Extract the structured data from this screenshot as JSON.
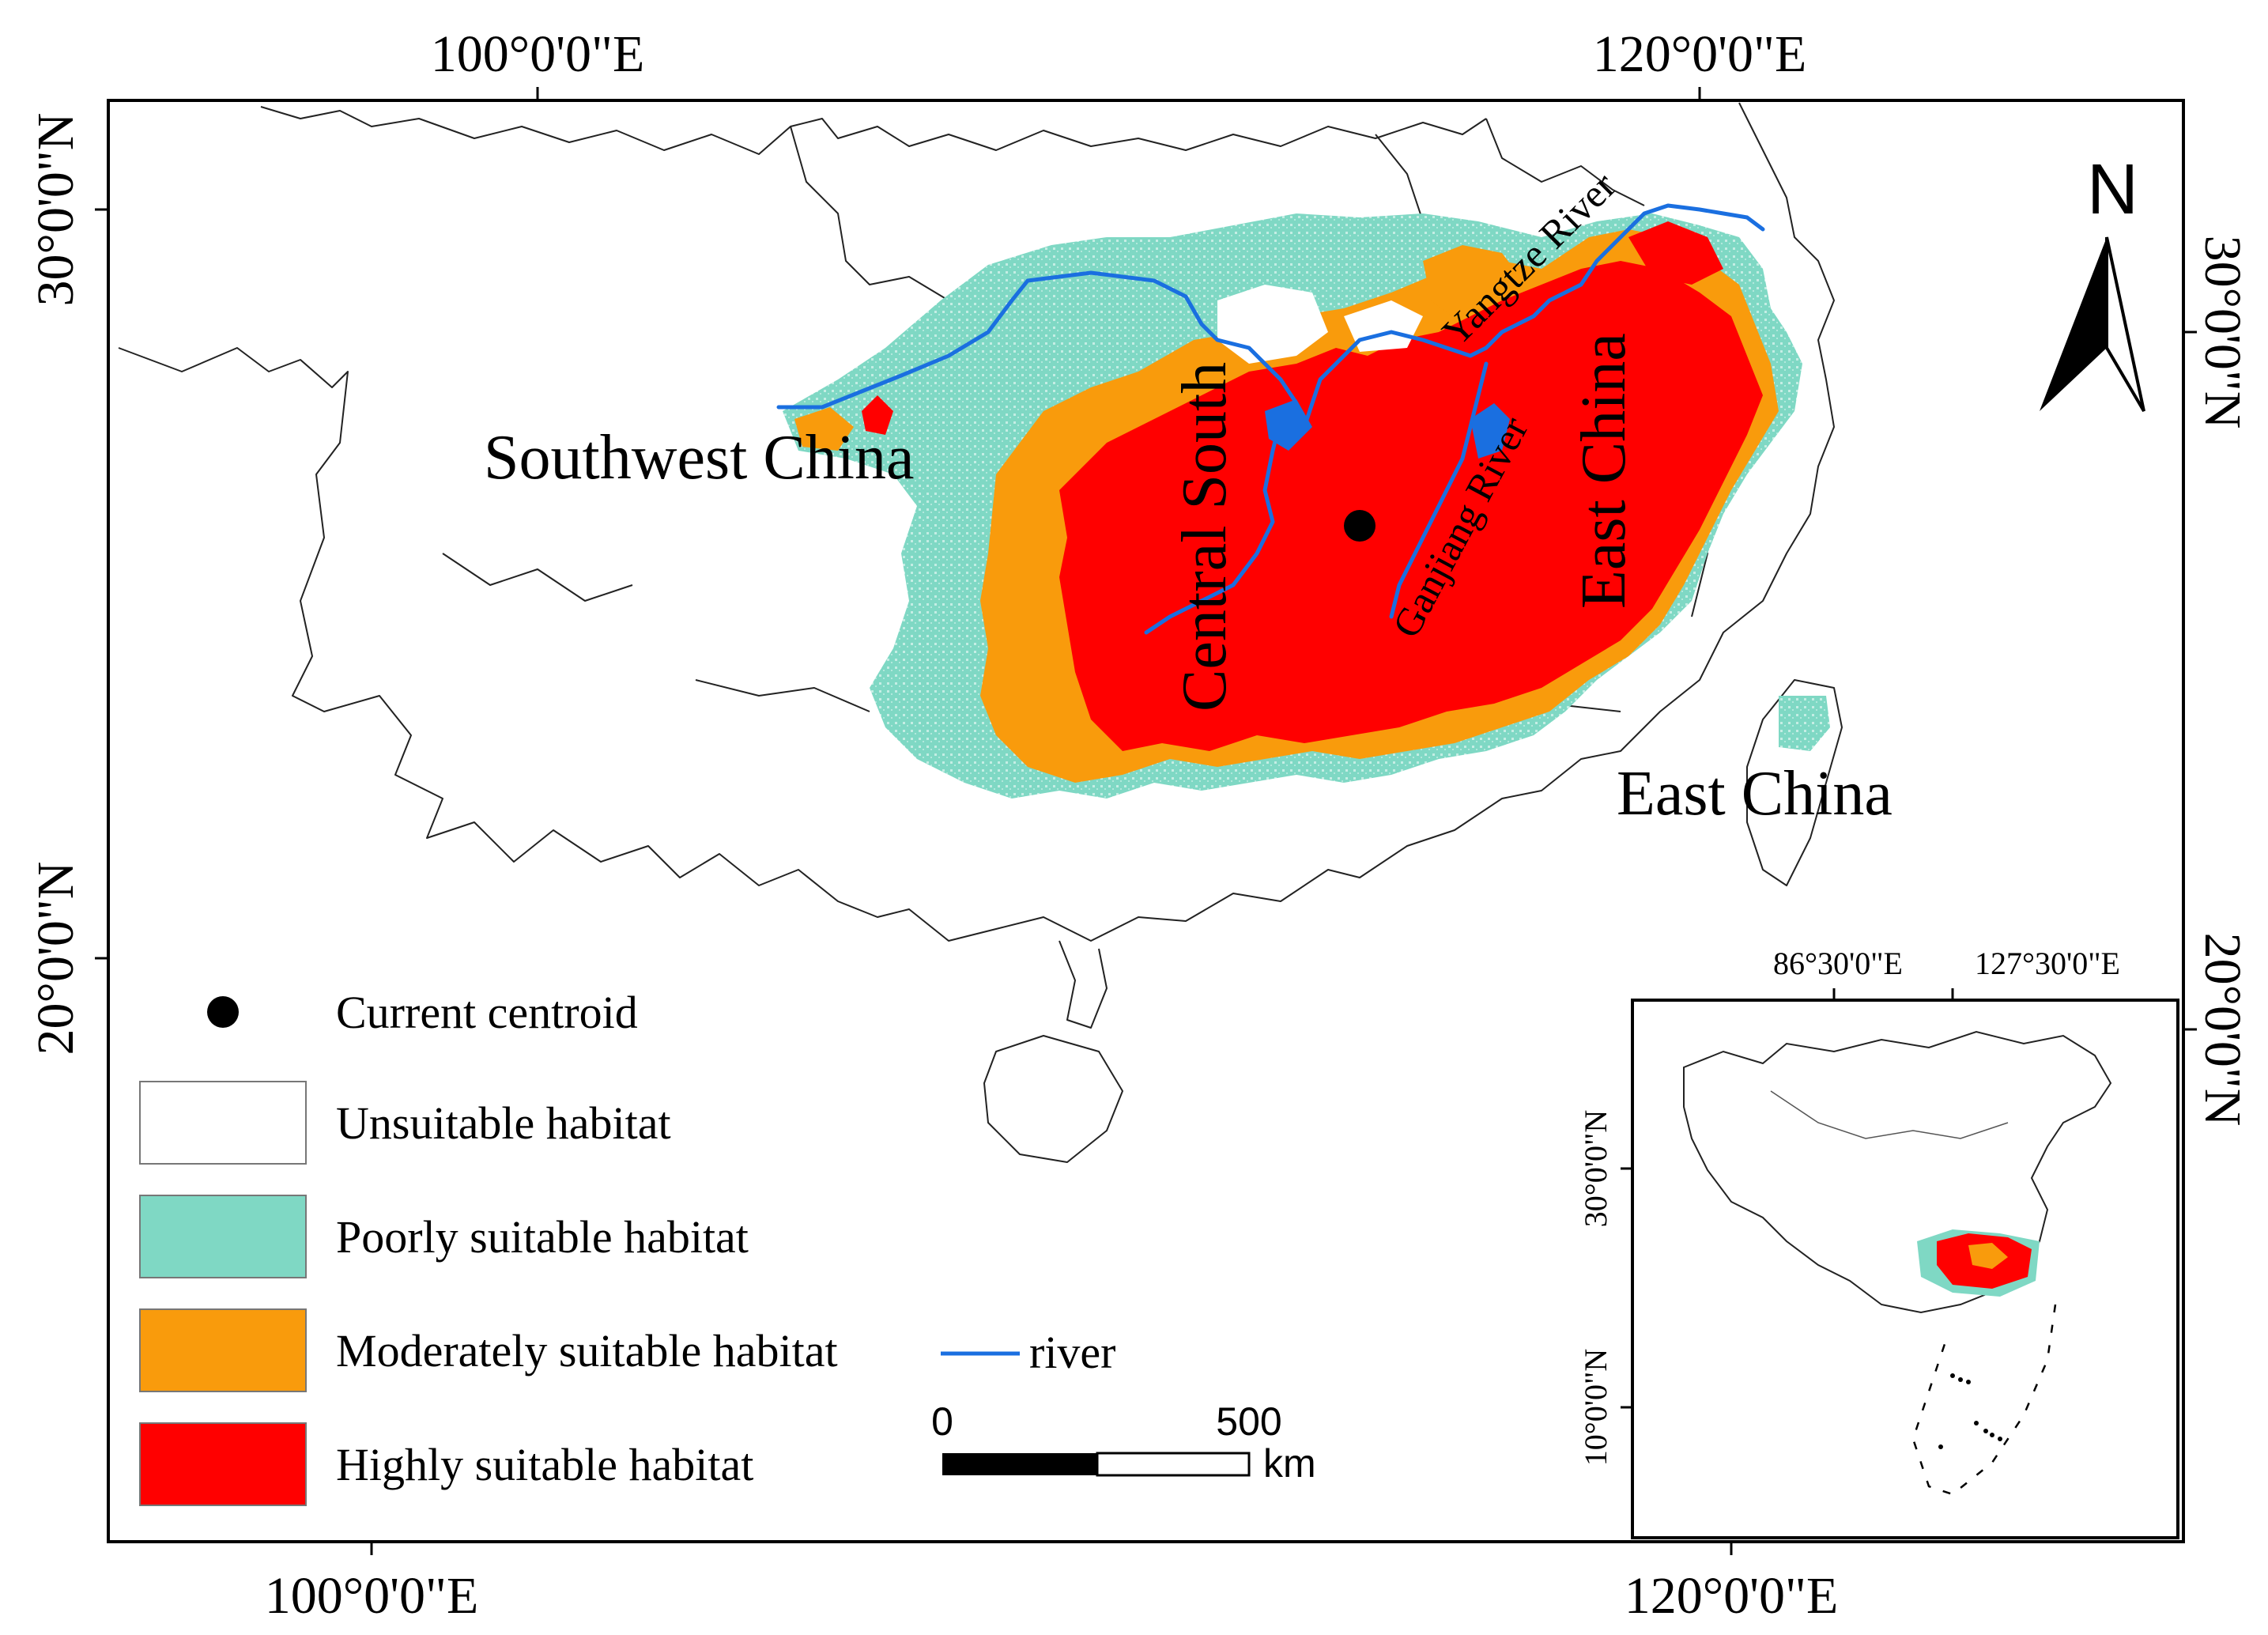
{
  "coords": {
    "top_left": "100°0'0\"E",
    "top_right": "120°0'0\"E",
    "bottom_left": "100°0'0\"E",
    "bottom_right": "120°0'0\"E",
    "left_top": "30°0'0\"N",
    "left_bottom": "20°0'0\"N",
    "right_top": "30°0'0\"N",
    "right_bottom": "20°0'0\"N"
  },
  "inset_coords": {
    "top_left": "86°30'0\"E",
    "top_right": "127°30'0\"E",
    "left_top": "30°0'0\"N",
    "left_bottom": "10°0'0\"N"
  },
  "regions": {
    "southwest": "Southwest China",
    "central_south": "Central South",
    "east_main": "East China",
    "east_taiwan": "East China"
  },
  "rivers": {
    "yangtze": "Yangtze River",
    "ganjiang": "Ganjiang River"
  },
  "north_arrow": {
    "label": "N"
  },
  "legend": {
    "centroid": "Current centroid",
    "unsuitable": "Unsuitable habitat",
    "poor": "Poorly suitable habitat",
    "moderate": "Moderately suitable habitat",
    "high": "Highly suitable habitat",
    "river": "river"
  },
  "scale_bar": {
    "start": "0",
    "end": "500",
    "unit": "km"
  },
  "colors": {
    "unsuitable": "#ffffff",
    "poor": "#7fd8c4",
    "moderate": "#f99b0c",
    "high": "#ff0000",
    "river": "#1a6fe0"
  }
}
